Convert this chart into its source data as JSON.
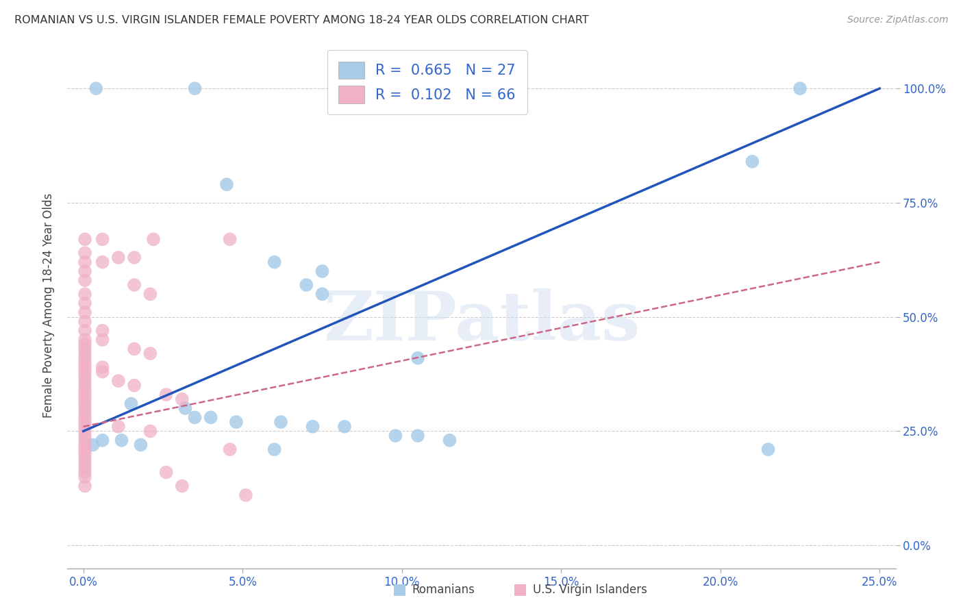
{
  "title": "ROMANIAN VS U.S. VIRGIN ISLANDER FEMALE POVERTY AMONG 18-24 YEAR OLDS CORRELATION CHART",
  "source": "Source: ZipAtlas.com",
  "ylabel": "Female Poverty Among 18-24 Year Olds",
  "right_ytick_labels": [
    "0.0%",
    "25.0%",
    "50.0%",
    "75.0%",
    "100.0%"
  ],
  "right_ytick_vals": [
    0,
    25,
    50,
    75,
    100
  ],
  "xtick_labels": [
    "0.0%",
    "5.0%",
    "10.0%",
    "15.0%",
    "20.0%",
    "25.0%"
  ],
  "xtick_vals": [
    0,
    5,
    10,
    15,
    20,
    25
  ],
  "xlim": [
    -0.5,
    25.5
  ],
  "ylim": [
    -5,
    110
  ],
  "legend_blue_label": "Romanians",
  "legend_pink_label": "U.S. Virgin Islanders",
  "R_blue": "0.665",
  "N_blue": "27",
  "R_pink": "0.102",
  "N_pink": "66",
  "blue_color": "#a8cce8",
  "pink_color": "#f0b0c8",
  "blue_line_color": "#2255bb",
  "pink_line_color": "#cc6688",
  "watermark": "ZIPatlas",
  "blue_dots": [
    [
      0.4,
      100
    ],
    [
      3.5,
      100
    ],
    [
      22.5,
      100
    ],
    [
      21.0,
      84
    ],
    [
      4.5,
      79
    ],
    [
      6.0,
      62
    ],
    [
      7.5,
      60
    ],
    [
      7.0,
      57
    ],
    [
      7.5,
      55
    ],
    [
      10.5,
      41
    ],
    [
      1.5,
      31
    ],
    [
      3.2,
      30
    ],
    [
      4.0,
      28
    ],
    [
      4.8,
      27
    ],
    [
      6.2,
      27
    ],
    [
      7.2,
      26
    ],
    [
      8.2,
      26
    ],
    [
      9.8,
      24
    ],
    [
      10.5,
      24
    ],
    [
      11.5,
      23
    ],
    [
      0.6,
      23
    ],
    [
      1.2,
      23
    ],
    [
      1.8,
      22
    ],
    [
      6.0,
      21
    ],
    [
      21.5,
      21
    ],
    [
      3.5,
      28
    ],
    [
      0.3,
      22
    ]
  ],
  "pink_dots": [
    [
      0.05,
      67
    ],
    [
      0.05,
      64
    ],
    [
      0.05,
      62
    ],
    [
      0.05,
      60
    ],
    [
      0.05,
      58
    ],
    [
      0.05,
      55
    ],
    [
      0.05,
      53
    ],
    [
      0.05,
      51
    ],
    [
      0.05,
      49
    ],
    [
      0.05,
      47
    ],
    [
      0.05,
      45
    ],
    [
      0.05,
      44
    ],
    [
      0.05,
      43
    ],
    [
      0.05,
      42
    ],
    [
      0.05,
      41
    ],
    [
      0.05,
      40
    ],
    [
      0.05,
      39
    ],
    [
      0.05,
      38
    ],
    [
      0.05,
      37
    ],
    [
      0.05,
      36
    ],
    [
      0.05,
      35
    ],
    [
      0.05,
      34
    ],
    [
      0.05,
      33
    ],
    [
      0.05,
      32
    ],
    [
      0.05,
      31
    ],
    [
      0.05,
      30
    ],
    [
      0.05,
      29
    ],
    [
      0.05,
      28
    ],
    [
      0.05,
      27
    ],
    [
      0.05,
      26
    ],
    [
      0.05,
      25
    ],
    [
      0.05,
      24
    ],
    [
      0.05,
      23
    ],
    [
      0.05,
      22
    ],
    [
      0.05,
      21
    ],
    [
      0.05,
      20
    ],
    [
      0.05,
      19
    ],
    [
      0.05,
      18
    ],
    [
      0.05,
      17
    ],
    [
      0.05,
      16
    ],
    [
      0.05,
      15
    ],
    [
      0.05,
      13
    ],
    [
      0.6,
      67
    ],
    [
      0.6,
      62
    ],
    [
      1.1,
      63
    ],
    [
      1.6,
      63
    ],
    [
      2.2,
      67
    ],
    [
      4.6,
      67
    ],
    [
      1.6,
      57
    ],
    [
      2.1,
      55
    ],
    [
      0.6,
      47
    ],
    [
      0.6,
      45
    ],
    [
      1.6,
      43
    ],
    [
      2.1,
      42
    ],
    [
      0.6,
      39
    ],
    [
      0.6,
      38
    ],
    [
      1.1,
      36
    ],
    [
      1.6,
      35
    ],
    [
      2.6,
      33
    ],
    [
      3.1,
      32
    ],
    [
      1.1,
      26
    ],
    [
      2.1,
      25
    ],
    [
      4.6,
      21
    ],
    [
      5.1,
      11
    ],
    [
      2.6,
      16
    ],
    [
      3.1,
      13
    ]
  ],
  "blue_trendline_x": [
    0,
    25
  ],
  "blue_trendline_y": [
    25,
    100
  ],
  "pink_trendline_x": [
    0,
    25
  ],
  "pink_trendline_y": [
    26,
    62
  ]
}
